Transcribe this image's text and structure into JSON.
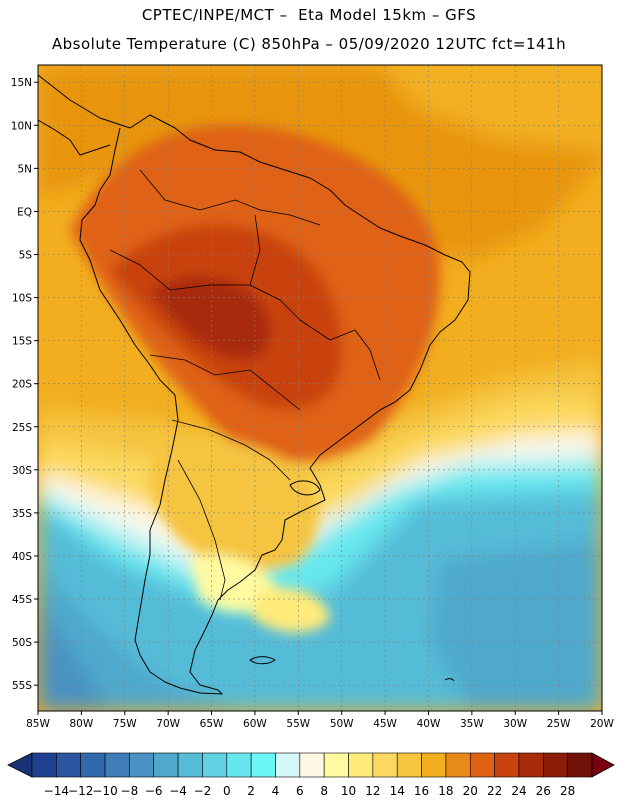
{
  "header": {
    "line1": "CPTEC/INPE/MCT –  Eta Model 15km – GFS",
    "line2": "Absolute Temperature (C) 850hPa – 05/09/2020 12UTC fct=141h"
  },
  "axes": {
    "lat_labels": [
      "15N",
      "10N",
      "5N",
      "EQ",
      "5S",
      "10S",
      "15S",
      "20S",
      "25S",
      "30S",
      "35S",
      "40S",
      "45S",
      "50S",
      "55S"
    ],
    "lon_labels": [
      "85W",
      "80W",
      "75W",
      "70W",
      "65W",
      "60W",
      "55W",
      "50W",
      "45W",
      "40W",
      "35W",
      "30W",
      "25W",
      "20W"
    ]
  },
  "colorbar": {
    "labels": [
      "-14",
      "-12",
      "-10",
      "-8",
      "-6",
      "-4",
      "-2",
      "0",
      "2",
      "4",
      "6",
      "8",
      "10",
      "12",
      "14",
      "16",
      "18",
      "20",
      "22",
      "24",
      "26",
      "28"
    ],
    "colors": [
      "#1f3f8f",
      "#2a56a0",
      "#3468ac",
      "#3f7db8",
      "#4a92c2",
      "#4fa9cc",
      "#55bcd8",
      "#60d2e4",
      "#66e7ee",
      "#6cf6f6",
      "#d4f6f6",
      "#fff6e4",
      "#fffaa0",
      "#ffeb7a",
      "#fbd95f",
      "#f5c440",
      "#f2ae1f",
      "#e88a1a",
      "#df6212",
      "#c9420d",
      "#a82c09",
      "#8a1d08",
      "#6e1208"
    ],
    "under_color": "#1a3278",
    "over_color": "#7a0010"
  }
}
